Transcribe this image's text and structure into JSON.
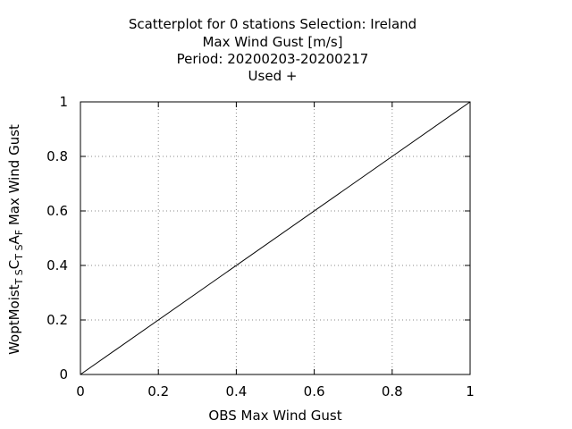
{
  "chart_data": {
    "type": "line",
    "title_lines": [
      "Scatterplot for    0 stations Selection: Ireland",
      "Max Wind Gust [m/s]",
      "Period: 20200203-20200217",
      "Used   +"
    ],
    "xlabel": "OBS Max Wind Gust",
    "ylabel_parts": {
      "p1": "WoptMoist",
      "s1": "T S",
      "p2": "C",
      "s2": "T S",
      "p3": "A",
      "s3": "F",
      "p4": " Max Wind Gust"
    },
    "xlim": [
      0,
      1
    ],
    "ylim": [
      0,
      1
    ],
    "xticks": [
      "0",
      "0.2",
      "0.4",
      "0.6",
      "0.8",
      "1"
    ],
    "yticks": [
      "0",
      "0.2",
      "0.4",
      "0.6",
      "0.8",
      "1"
    ],
    "grid": true,
    "series": [
      {
        "x": [
          0,
          1
        ],
        "y": [
          0,
          1
        ]
      }
    ]
  }
}
